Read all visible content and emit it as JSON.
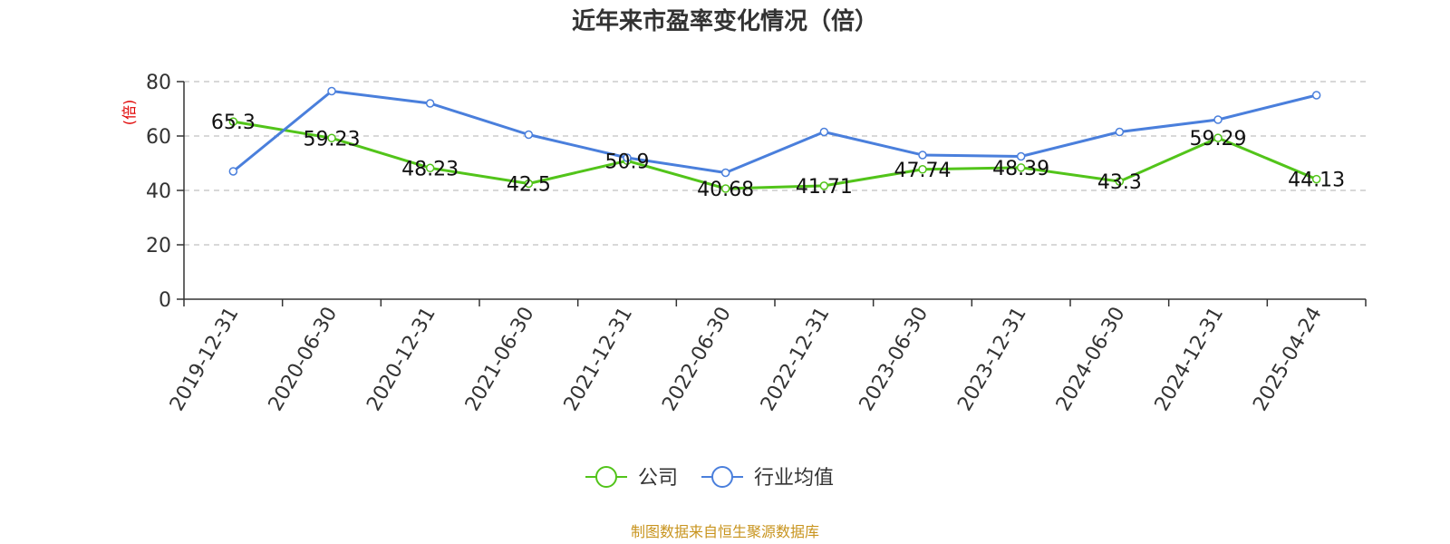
{
  "chart_data": {
    "type": "line",
    "title": "近年来市盈率变化情况（倍）",
    "ylabel": "(倍)",
    "ylim": [
      0,
      80
    ],
    "yticks": [
      0,
      20,
      40,
      60,
      80
    ],
    "grid": true,
    "legend_position": "bottom-center",
    "categories": [
      "2019-12-31",
      "2020-06-30",
      "2020-12-31",
      "2021-06-30",
      "2021-12-31",
      "2022-06-30",
      "2022-12-31",
      "2023-06-30",
      "2023-12-31",
      "2024-06-30",
      "2024-12-31",
      "2025-04-24"
    ],
    "series": [
      {
        "name": "公司",
        "color": "#52c41a",
        "values": [
          65.3,
          59.23,
          48.23,
          42.5,
          50.9,
          40.68,
          41.71,
          47.74,
          48.39,
          43.3,
          59.29,
          44.13
        ],
        "labels": [
          "65.3",
          "59.23",
          "48.23",
          "42.5",
          "50.9",
          "40.68",
          "41.71",
          "47.74",
          "48.39",
          "43.3",
          "59.29",
          "44.13"
        ]
      },
      {
        "name": "行业均值",
        "color": "#4a7fdc",
        "values": [
          47.0,
          76.5,
          72.0,
          60.5,
          52.0,
          46.5,
          61.5,
          53.0,
          52.5,
          61.5,
          66.0,
          75.0
        ]
      }
    ],
    "source": "制图数据来自恒生聚源数据库"
  }
}
